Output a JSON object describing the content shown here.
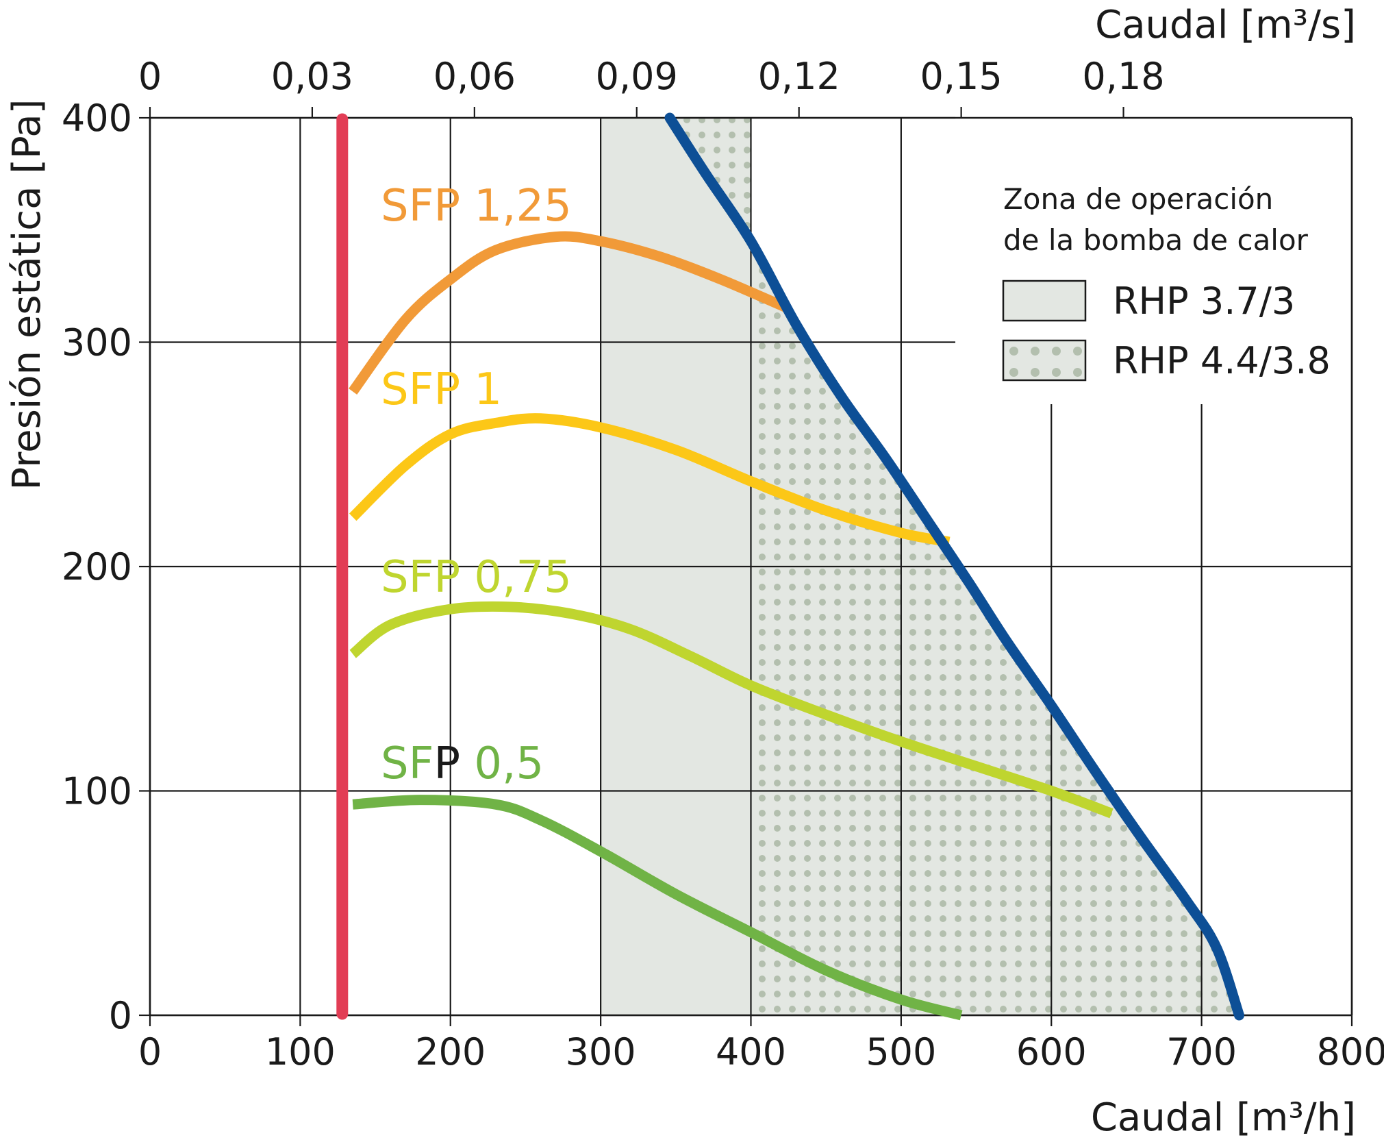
{
  "chart_data": {
    "type": "line",
    "xlabel_bottom": "Caudal [m³/h]",
    "xlabel_top": "Caudal [m³/s]",
    "ylabel": "Presión estática [Pa]",
    "xlim": [
      0,
      800
    ],
    "ylim": [
      0,
      400
    ],
    "x_ticks": [
      "0",
      "100",
      "200",
      "300",
      "400",
      "500",
      "600",
      "700",
      "800"
    ],
    "x_top_ticks": [
      "0",
      "0,03",
      "0,06",
      "0,09",
      "0,12",
      "0,15",
      "0,18"
    ],
    "y_ticks": [
      "0",
      "100",
      "200",
      "300",
      "400"
    ],
    "grid": true,
    "legend": {
      "placement": "top-right",
      "title_line1": "Zona de operación",
      "title_line2": "de la bomba de calor",
      "items": [
        {
          "label": "RHP 3.7/3",
          "pattern": "solid",
          "color": "#e3e7e2"
        },
        {
          "label": "RHP 4.4/3.8",
          "pattern": "dotted",
          "color": "#e3e7e2"
        }
      ]
    },
    "zones": [
      {
        "name": "RHP 3.7/3",
        "x_from": 300,
        "color": "#e3e7e2"
      },
      {
        "name": "RHP 4.4/3.8",
        "x_from": 400,
        "color": "#e3e7e2",
        "dot_color": "#b3bfae"
      }
    ],
    "limit_lines": [
      {
        "kind": "min-flow",
        "color": "#e23d55",
        "points": [
          [
            128,
            0
          ],
          [
            128,
            400
          ]
        ]
      },
      {
        "kind": "max-curve",
        "color": "#0d4f96",
        "points": [
          [
            346,
            400
          ],
          [
            370,
            375
          ],
          [
            400,
            345
          ],
          [
            430,
            308
          ],
          [
            460,
            276
          ],
          [
            490,
            248
          ],
          [
            520,
            218
          ],
          [
            545,
            193
          ],
          [
            570,
            167
          ],
          [
            600,
            138
          ],
          [
            630,
            108
          ],
          [
            660,
            79
          ],
          [
            690,
            51
          ],
          [
            710,
            30
          ],
          [
            725,
            0
          ]
        ]
      }
    ],
    "series": [
      {
        "name": "SFP 1,25",
        "color": "#f19a38",
        "x": [
          135,
          170,
          200,
          230,
          270,
          300,
          340,
          380,
          425
        ],
        "y": [
          278,
          310,
          328,
          341,
          347,
          345,
          338,
          328,
          315
        ]
      },
      {
        "name": "SFP 1",
        "color": "#fcc717",
        "x": [
          135,
          170,
          200,
          230,
          260,
          300,
          350,
          400,
          450,
          500,
          532
        ],
        "y": [
          222,
          245,
          259,
          264,
          266,
          262,
          252,
          238,
          225,
          215,
          211
        ]
      },
      {
        "name": "SFP 0,75",
        "color": "#bfd52f",
        "x": [
          135,
          160,
          200,
          240,
          280,
          320,
          360,
          400,
          450,
          500,
          550,
          600,
          640
        ],
        "y": [
          161,
          174,
          181,
          182,
          179,
          172,
          160,
          147,
          134,
          122,
          111,
          100,
          90
        ]
      },
      {
        "name": "SFP 0,5",
        "color": "#70b346",
        "x": [
          135,
          180,
          230,
          260,
          300,
          350,
          400,
          450,
          500,
          540
        ],
        "y": [
          94,
          96,
          94,
          87,
          73,
          54,
          37,
          20,
          7,
          0
        ]
      }
    ],
    "series_label_parts": [
      [
        "SFP 1,25"
      ],
      [
        "SFP 1"
      ],
      [
        "SFP 0,75"
      ],
      [
        "SF",
        "P",
        " 0,5"
      ]
    ]
  }
}
